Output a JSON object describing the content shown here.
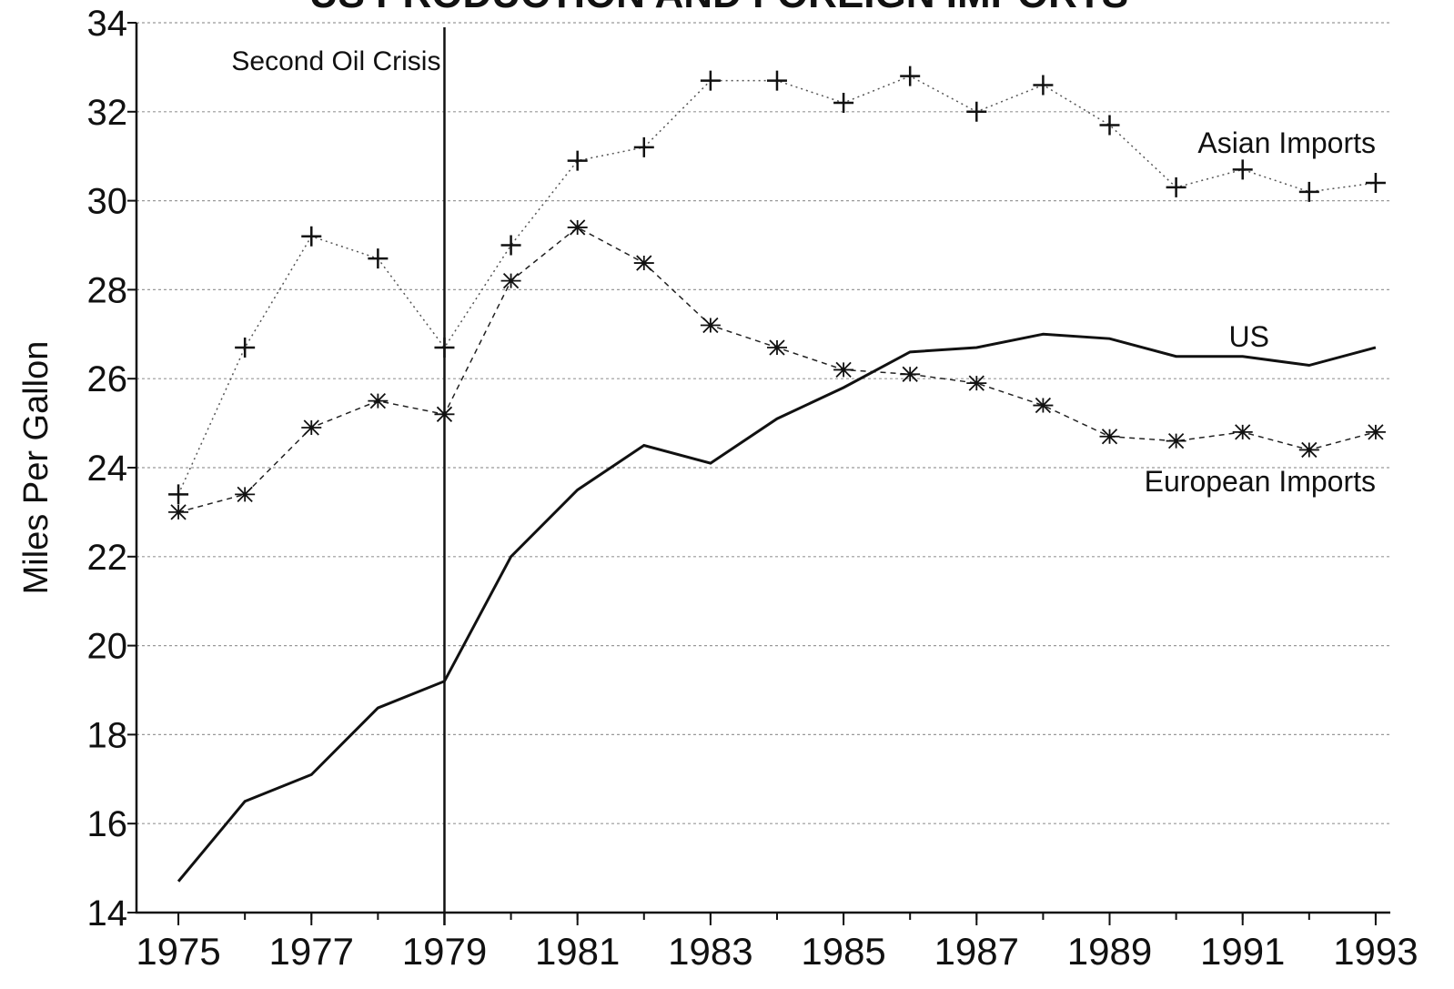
{
  "chart_data": {
    "type": "line",
    "title": "US PRODUCTION AND FOREIGN IMPORTS",
    "y_label": "Miles Per Gallon",
    "x": [
      1975,
      1976,
      1977,
      1978,
      1979,
      1980,
      1981,
      1982,
      1983,
      1984,
      1985,
      1986,
      1987,
      1988,
      1989,
      1990,
      1991,
      1992,
      1993
    ],
    "series": [
      {
        "name": "Asian Imports",
        "color": "#555555",
        "line_style": "dotted",
        "marker": "plus",
        "values": [
          23.4,
          26.7,
          29.2,
          28.7,
          26.7,
          29.0,
          30.9,
          31.2,
          32.7,
          32.7,
          32.2,
          32.8,
          32.0,
          32.6,
          31.7,
          30.3,
          30.7,
          30.2,
          30.4
        ]
      },
      {
        "name": "European Imports",
        "color": "#222222",
        "line_style": "dashed",
        "marker": "asterisk",
        "values": [
          23.0,
          23.4,
          24.9,
          25.5,
          25.2,
          28.2,
          29.4,
          28.6,
          27.2,
          26.7,
          26.2,
          26.1,
          25.9,
          25.4,
          24.7,
          24.6,
          24.8,
          24.4,
          24.8
        ]
      },
      {
        "name": "US",
        "color": "#111111",
        "line_style": "solid",
        "marker": "none",
        "values": [
          14.7,
          16.5,
          17.1,
          18.6,
          19.2,
          22.0,
          23.5,
          24.5,
          24.1,
          25.1,
          25.8,
          26.6,
          26.7,
          27.0,
          26.9,
          26.5,
          26.5,
          26.3,
          26.7
        ]
      }
    ],
    "annotations": [
      {
        "text": "Second Oil Crisis",
        "x": 1979
      }
    ],
    "xlim": [
      1974.37,
      1993.22
    ],
    "xticks": [
      1975,
      1977,
      1979,
      1981,
      1983,
      1985,
      1987,
      1989,
      1991,
      1993
    ],
    "ylim": [
      14,
      34
    ],
    "yticks": [
      14,
      16,
      18,
      20,
      22,
      24,
      26,
      28,
      30,
      32,
      34
    ],
    "grid": true
  }
}
